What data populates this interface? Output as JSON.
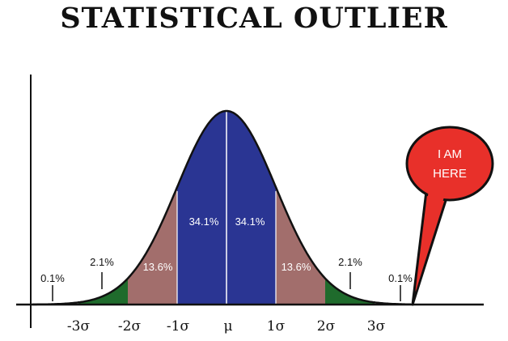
{
  "title": "STATISTICAL OUTLIER",
  "regions": [
    {
      "label": "34.1%",
      "color": "#2a3593"
    },
    {
      "label": "13.6%",
      "color": "#a26e6c"
    },
    {
      "label": "2.1%",
      "color": "#1f6b2c"
    },
    {
      "label": "0.1%"
    }
  ],
  "ticks": [
    "-3σ",
    "-2σ",
    "-1σ",
    "μ",
    "1σ",
    "2σ",
    "3σ"
  ],
  "callout": {
    "line1": "I AM",
    "line2": "HERE",
    "color": "#e8302a"
  }
}
